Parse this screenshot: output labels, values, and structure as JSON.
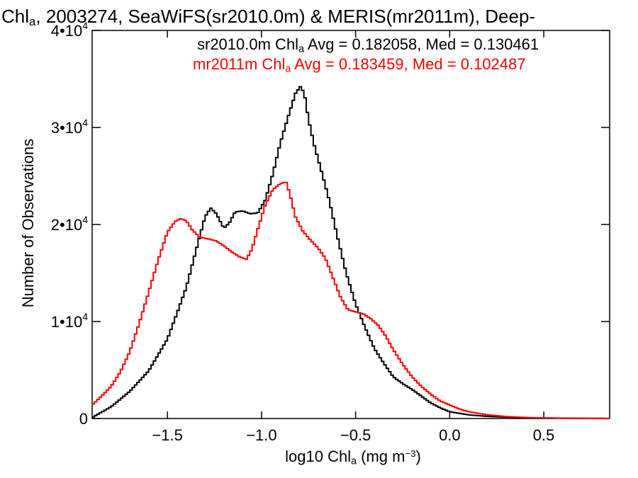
{
  "chart_data": {
    "type": "histogram",
    "title": {
      "prefix": "Chl",
      "sub": "a",
      "rest": ", 2003274, SeaWiFS(sr2010.0m) & MERIS(mr2011m), Deep-"
    },
    "xlabel": {
      "prefix": "log10 Chl",
      "sub": "a",
      "middle": " (mg m",
      "sup": "−3",
      "suffix": ")"
    },
    "ylabel": "Number of Observations",
    "xlim": [
      -1.9,
      0.85
    ],
    "ylim": [
      0,
      40000
    ],
    "x_ticks": [
      -1.5,
      -1.0,
      -0.5,
      0.0,
      0.5
    ],
    "x_tick_labels": [
      "−1.5",
      "−1.0",
      "−0.5",
      "0.0",
      "0.5"
    ],
    "y_ticks": [
      0,
      10000,
      20000,
      30000,
      40000
    ],
    "y_tick_labels": [
      {
        "mant": "0",
        "sup": ""
      },
      {
        "mant": "1•10",
        "sup": "4"
      },
      {
        "mant": "2•10",
        "sup": "4"
      },
      {
        "mant": "3•10",
        "sup": "4"
      },
      {
        "mant": "4•10",
        "sup": "4"
      }
    ],
    "annotations": [
      {
        "prefix": "sr2010.0m Chl",
        "sub": "a",
        "rest": " Avg = 0.182058, Med = 0.130461",
        "color": "#000000"
      },
      {
        "prefix": "mr2011m Chl",
        "sub": "a",
        "rest": " Avg = 0.183459, Med = 0.102487",
        "color": "#ff0000"
      }
    ],
    "series": [
      {
        "name": "sr2010.0m",
        "color": "#000000",
        "x": [
          -1.9,
          -1.8,
          -1.7,
          -1.6,
          -1.5,
          -1.45,
          -1.4,
          -1.35,
          -1.3,
          -1.27,
          -1.24,
          -1.2,
          -1.17,
          -1.14,
          -1.1,
          -1.06,
          -1.02,
          -0.98,
          -0.94,
          -0.9,
          -0.86,
          -0.82,
          -0.79,
          -0.77,
          -0.75,
          -0.72,
          -0.68,
          -0.64,
          -0.6,
          -0.55,
          -0.5,
          -0.45,
          -0.4,
          -0.35,
          -0.3,
          -0.25,
          -0.2,
          -0.15,
          -0.1,
          -0.05,
          0.0,
          0.1,
          0.2,
          0.3,
          0.4,
          0.5,
          0.6,
          0.7,
          0.85
        ],
        "values": [
          100,
          1200,
          2800,
          4900,
          8200,
          10800,
          13500,
          17200,
          20800,
          21700,
          21100,
          19600,
          20200,
          21300,
          21400,
          21100,
          21200,
          22500,
          25200,
          28400,
          31000,
          33500,
          34300,
          33200,
          30800,
          28200,
          25400,
          22500,
          19000,
          15000,
          11800,
          9400,
          7200,
          5700,
          4300,
          3600,
          3000,
          2300,
          1600,
          1100,
          700,
          380,
          220,
          140,
          90,
          60,
          40,
          25,
          10
        ]
      },
      {
        "name": "mr2011m",
        "color": "#ff0000",
        "x": [
          -1.9,
          -1.85,
          -1.8,
          -1.75,
          -1.7,
          -1.65,
          -1.6,
          -1.55,
          -1.5,
          -1.46,
          -1.43,
          -1.4,
          -1.37,
          -1.33,
          -1.28,
          -1.24,
          -1.2,
          -1.16,
          -1.12,
          -1.08,
          -1.05,
          -1.02,
          -0.98,
          -0.94,
          -0.9,
          -0.87,
          -0.85,
          -0.82,
          -0.78,
          -0.74,
          -0.7,
          -0.66,
          -0.62,
          -0.58,
          -0.54,
          -0.5,
          -0.46,
          -0.42,
          -0.38,
          -0.34,
          -0.3,
          -0.25,
          -0.2,
          -0.15,
          -0.1,
          -0.05,
          0.0,
          0.05,
          0.1,
          0.2,
          0.3,
          0.4,
          0.5,
          0.6,
          0.7,
          0.85
        ],
        "values": [
          1400,
          2300,
          3300,
          4800,
          6900,
          9800,
          13000,
          16300,
          19200,
          20300,
          20600,
          20400,
          19500,
          18700,
          18500,
          18300,
          17800,
          17200,
          16700,
          16400,
          17500,
          19500,
          22000,
          23600,
          24200,
          24400,
          23200,
          20800,
          19300,
          18400,
          17600,
          16500,
          14500,
          12500,
          11200,
          11000,
          10800,
          10300,
          9600,
          8500,
          7100,
          5600,
          4300,
          3300,
          2500,
          1800,
          1400,
          1000,
          700,
          380,
          200,
          110,
          60,
          30,
          15,
          5
        ]
      }
    ]
  }
}
